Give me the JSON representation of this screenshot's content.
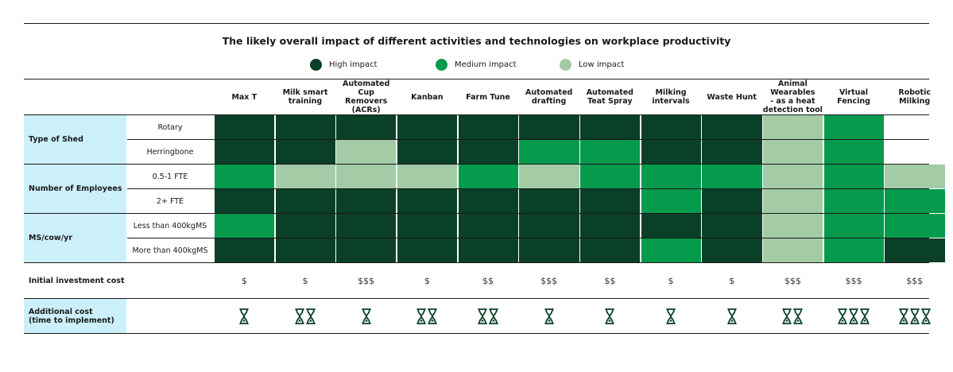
{
  "title": "The likely overall impact of different activities and technologies on workplace productivity",
  "legend": [
    {
      "label": "High impact",
      "color": "#0a4027"
    },
    {
      "label": "Medium impact",
      "color": "#059a4c"
    },
    {
      "label": "Low impact",
      "color": "#a2cba6"
    }
  ],
  "colors": {
    "high": "#0a4027",
    "medium": "#059a4c",
    "low": "#a2cba6",
    "none": "#ffffff",
    "category_bg": "#ccf0fa",
    "icon": "#0a4027"
  },
  "chart_data": {
    "type": "heatmap",
    "title": "The likely overall impact of different activities and technologies on workplace productivity",
    "columns": [
      [
        "Max T"
      ],
      [
        "Milk smart",
        "training"
      ],
      [
        "Automated",
        "Cup",
        "Removers",
        "(ACRs)"
      ],
      [
        "Kanban"
      ],
      [
        "Farm Tune"
      ],
      [
        "Automated",
        "drafting"
      ],
      [
        "Automated",
        "Teat Spray"
      ],
      [
        "Milking",
        "intervals"
      ],
      [
        "Waste Hunt"
      ],
      [
        "Animal",
        "Wearables",
        "- as a heat",
        "detection tool"
      ],
      [
        "Virtual",
        "Fencing"
      ],
      [
        "Robotic",
        "Milking"
      ]
    ],
    "row_groups": [
      {
        "category": "Type of Shed",
        "rows": [
          {
            "label": "Rotary",
            "values": [
              "high",
              "high",
              "high",
              "high",
              "high",
              "high",
              "high",
              "high",
              "high",
              "low",
              "medium",
              "none"
            ]
          },
          {
            "label": "Herringbone",
            "values": [
              "high",
              "high",
              "low",
              "high",
              "high",
              "medium",
              "medium",
              "high",
              "high",
              "low",
              "medium",
              "none"
            ]
          }
        ]
      },
      {
        "category": "Number of Employees",
        "rows": [
          {
            "label": "0.5-1 FTE",
            "values": [
              "medium",
              "low",
              "low",
              "low",
              "medium",
              "low",
              "medium",
              "medium",
              "medium",
              "low",
              "medium",
              "low"
            ]
          },
          {
            "label": "2+ FTE",
            "values": [
              "high",
              "high",
              "high",
              "high",
              "high",
              "high",
              "high",
              "medium",
              "high",
              "low",
              "medium",
              "medium"
            ]
          }
        ]
      },
      {
        "category": "MS/cow/yr",
        "rows": [
          {
            "label": "Less than 400kgMS",
            "values": [
              "medium",
              "high",
              "high",
              "high",
              "high",
              "high",
              "high",
              "high",
              "high",
              "low",
              "medium",
              "medium"
            ]
          },
          {
            "label": "More than 400kgMS",
            "values": [
              "high",
              "high",
              "high",
              "high",
              "high",
              "high",
              "high",
              "medium",
              "high",
              "low",
              "medium",
              "high"
            ]
          }
        ]
      }
    ],
    "initial_cost_label": "Initial investment cost",
    "initial_cost": [
      "$",
      "$",
      "$$$",
      "$",
      "$$",
      "$$$",
      "$$",
      "$",
      "$",
      "$$$",
      "$$$",
      "$$$"
    ],
    "additional_cost_label": [
      "Additional cost",
      "(time to implement)"
    ],
    "additional_cost_hourglasses": [
      1,
      2,
      1,
      2,
      2,
      1,
      1,
      1,
      1,
      2,
      3,
      3
    ]
  }
}
